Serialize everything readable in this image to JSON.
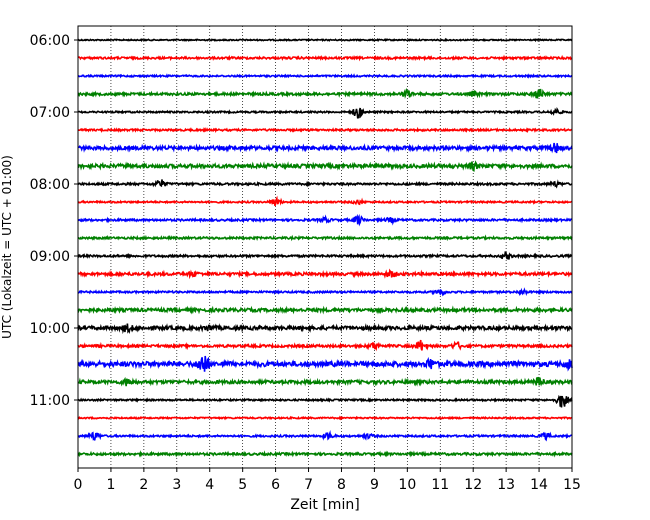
{
  "chart_data": {
    "type": "line",
    "title": "",
    "xlabel": "Zeit  [min]",
    "ylabel": "UTC (Lokalzeit = UTC + 01:00)",
    "xlim": [
      0,
      15
    ],
    "x_ticks": [
      0,
      1,
      2,
      3,
      4,
      5,
      6,
      7,
      8,
      9,
      10,
      11,
      12,
      13,
      14,
      15
    ],
    "y_tick_labels": [
      "06:00",
      "07:00",
      "08:00",
      "09:00",
      "10:00",
      "11:00"
    ],
    "grid": {
      "x": true,
      "style": "dotted"
    },
    "series_colors": [
      "#000000",
      "#ff0000",
      "#0000ff",
      "#008000"
    ],
    "traces": [
      {
        "start": "06:00",
        "amplitude": 0.6,
        "events": []
      },
      {
        "start": "06:15",
        "amplitude": 1.0,
        "events": []
      },
      {
        "start": "06:30",
        "amplitude": 0.8,
        "events": []
      },
      {
        "start": "06:45",
        "amplitude": 1.2,
        "events": [
          [
            10.0,
            3
          ],
          [
            12.0,
            2
          ],
          [
            14.0,
            5
          ]
        ]
      },
      {
        "start": "07:00",
        "amplitude": 0.8,
        "events": [
          [
            8.5,
            6
          ],
          [
            14.5,
            3
          ]
        ]
      },
      {
        "start": "07:15",
        "amplitude": 0.9,
        "events": []
      },
      {
        "start": "07:30",
        "amplitude": 1.8,
        "events": [
          [
            14.5,
            4
          ]
        ]
      },
      {
        "start": "07:45",
        "amplitude": 1.8,
        "events": [
          [
            12.0,
            3
          ]
        ]
      },
      {
        "start": "08:00",
        "amplitude": 1.0,
        "events": [
          [
            2.5,
            4
          ],
          [
            14.5,
            2
          ]
        ]
      },
      {
        "start": "08:15",
        "amplitude": 0.8,
        "events": [
          [
            6.0,
            4
          ],
          [
            8.5,
            2
          ]
        ]
      },
      {
        "start": "08:30",
        "amplitude": 1.0,
        "events": [
          [
            7.5,
            2
          ],
          [
            8.5,
            4
          ],
          [
            9.5,
            2
          ]
        ]
      },
      {
        "start": "08:45",
        "amplitude": 1.0,
        "events": []
      },
      {
        "start": "09:00",
        "amplitude": 1.0,
        "events": [
          [
            13.0,
            3
          ]
        ]
      },
      {
        "start": "09:15",
        "amplitude": 1.4,
        "events": [
          [
            3.5,
            2
          ],
          [
            9.5,
            3
          ]
        ]
      },
      {
        "start": "09:30",
        "amplitude": 0.9,
        "events": [
          [
            11.0,
            3
          ],
          [
            13.5,
            2
          ]
        ]
      },
      {
        "start": "09:45",
        "amplitude": 1.6,
        "events": []
      },
      {
        "start": "10:00",
        "amplitude": 1.8,
        "events": [
          [
            1.5,
            3
          ],
          [
            4.0,
            2
          ]
        ]
      },
      {
        "start": "10:15",
        "amplitude": 1.2,
        "events": [
          [
            9.0,
            3
          ],
          [
            10.4,
            5
          ],
          [
            11.5,
            3
          ]
        ]
      },
      {
        "start": "10:30",
        "amplitude": 2.4,
        "events": [
          [
            3.8,
            10
          ],
          [
            10.7,
            4
          ],
          [
            14.9,
            4
          ]
        ]
      },
      {
        "start": "10:45",
        "amplitude": 1.6,
        "events": [
          [
            1.5,
            3
          ],
          [
            14.0,
            4
          ]
        ]
      },
      {
        "start": "11:00",
        "amplitude": 0.8,
        "events": [
          [
            14.7,
            8
          ]
        ]
      },
      {
        "start": "11:15",
        "amplitude": 0.7,
        "events": []
      },
      {
        "start": "11:30",
        "amplitude": 0.9,
        "events": [
          [
            0.5,
            4
          ],
          [
            7.6,
            3
          ],
          [
            8.8,
            2
          ],
          [
            14.2,
            3
          ]
        ]
      },
      {
        "start": "11:45",
        "amplitude": 1.1,
        "events": []
      }
    ]
  }
}
